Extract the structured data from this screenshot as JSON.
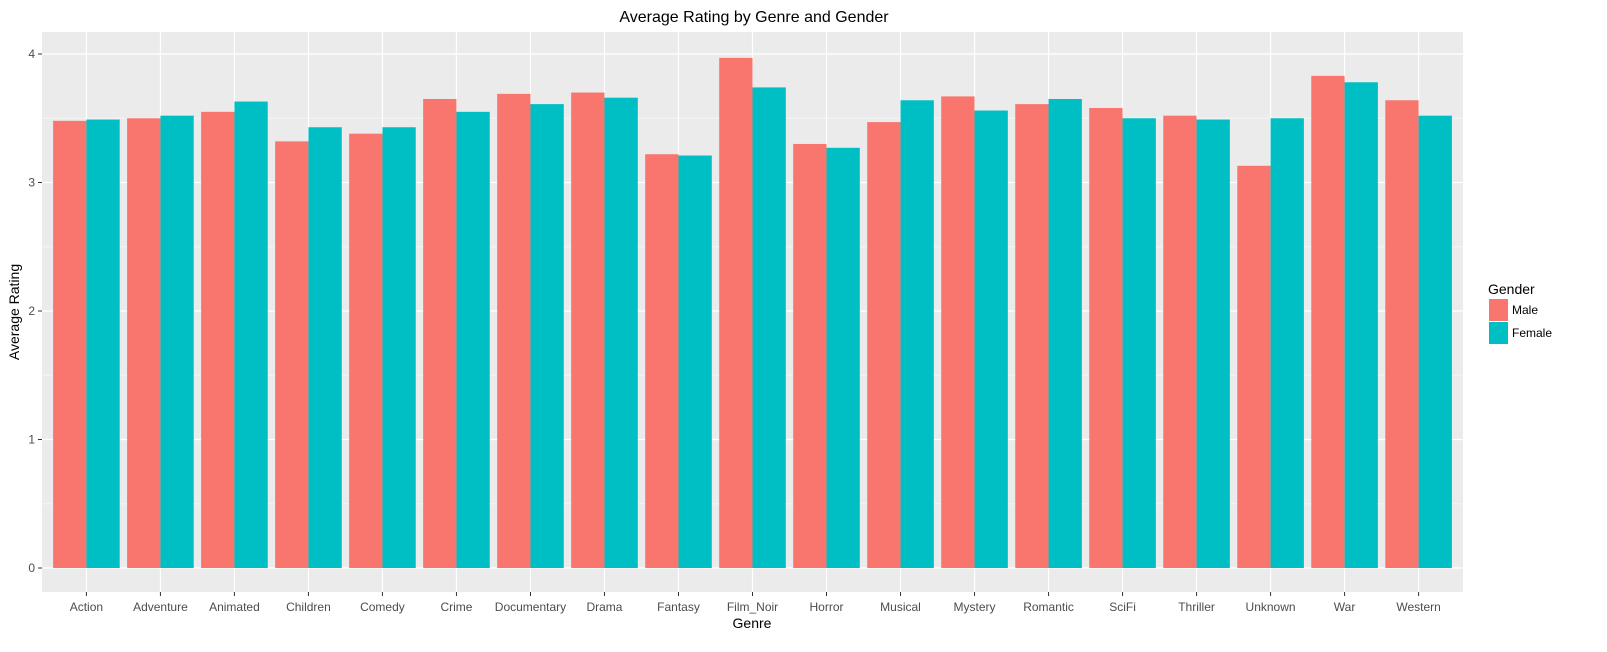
{
  "chart_data": {
    "type": "bar",
    "title": "Average Rating by Genre and Gender",
    "xlabel": "Genre",
    "ylabel": "Average Rating",
    "ylim": [
      0,
      4.2
    ],
    "yticks": [
      0,
      1,
      2,
      3,
      4
    ],
    "grid": true,
    "legend": {
      "title": "Gender",
      "placement": "right"
    },
    "categories": [
      "Action",
      "Adventure",
      "Animated",
      "Children",
      "Comedy",
      "Crime",
      "Documentary",
      "Drama",
      "Fantasy",
      "Film_Noir",
      "Horror",
      "Musical",
      "Mystery",
      "Romantic",
      "SciFi",
      "Thriller",
      "Unknown",
      "War",
      "Western"
    ],
    "series": [
      {
        "name": "Male",
        "color": "#F8766D",
        "values": [
          3.48,
          3.5,
          3.55,
          3.32,
          3.38,
          3.65,
          3.69,
          3.7,
          3.22,
          3.97,
          3.3,
          3.47,
          3.67,
          3.61,
          3.58,
          3.52,
          3.13,
          3.83,
          3.64
        ]
      },
      {
        "name": "Female",
        "color": "#00BFC4",
        "values": [
          3.49,
          3.52,
          3.63,
          3.43,
          3.43,
          3.55,
          3.61,
          3.66,
          3.21,
          3.74,
          3.27,
          3.64,
          3.56,
          3.65,
          3.5,
          3.49,
          3.5,
          3.78,
          3.52
        ]
      }
    ]
  }
}
